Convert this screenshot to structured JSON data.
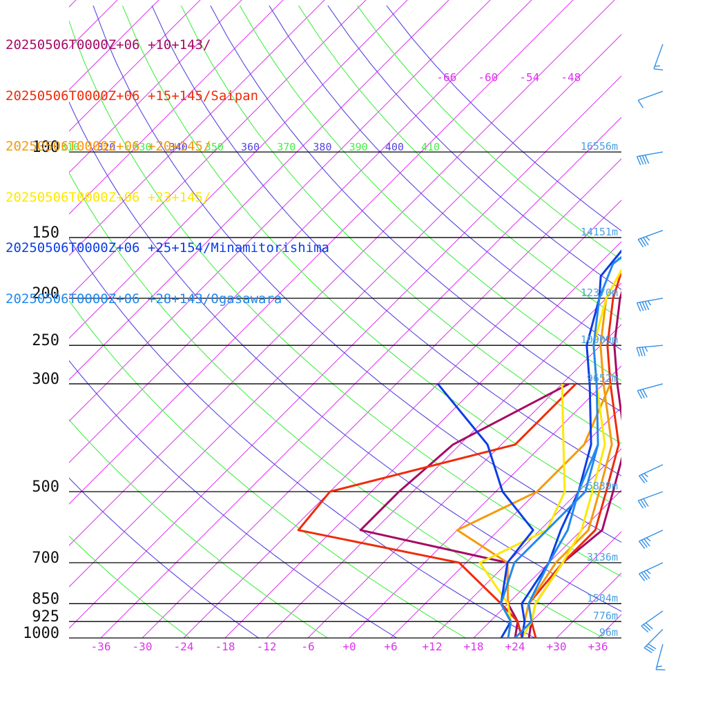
{
  "chart_data": {
    "type": "line",
    "title": "",
    "pressure_levels": [
      {
        "p": 100,
        "label": "100",
        "height": "16556m"
      },
      {
        "p": 150,
        "label": "150",
        "height": "14151m"
      },
      {
        "p": 200,
        "label": "200",
        "height": "12370m"
      },
      {
        "p": 250,
        "label": "250",
        "height": "10909m"
      },
      {
        "p": 300,
        "label": "300",
        "height": "9652m"
      },
      {
        "p": 500,
        "label": "500",
        "height": "5839m"
      },
      {
        "p": 700,
        "label": "700",
        "height": "3136m"
      },
      {
        "p": 850,
        "label": "850",
        "height": "1504m"
      },
      {
        "p": 925,
        "label": "925",
        "height": "776m"
      },
      {
        "p": 1000,
        "label": "1000",
        "height": "96m"
      }
    ],
    "x_ticks": [
      "-36",
      "-30",
      "-24",
      "-18",
      "-12",
      "-6",
      "+0",
      "+6",
      "+12",
      "+18",
      "+24",
      "+30",
      "+36"
    ],
    "upper_isotherm_labels": [
      "-66",
      "-60",
      "-54",
      "-48"
    ],
    "theta_labels": [
      {
        "text": "310",
        "color": "#44ee44"
      },
      {
        "text": "320",
        "color": "#5544dd"
      },
      {
        "text": "330",
        "color": "#44ee44"
      },
      {
        "text": "340",
        "color": "#5544dd"
      },
      {
        "text": "350",
        "color": "#44ee44"
      },
      {
        "text": "360",
        "color": "#5544dd"
      },
      {
        "text": "370",
        "color": "#44ee44"
      },
      {
        "text": "380",
        "color": "#5544dd"
      },
      {
        "text": "390",
        "color": "#44ee44"
      },
      {
        "text": "400",
        "color": "#5544dd"
      },
      {
        "text": "410",
        "color": "#44ee44"
      }
    ],
    "series": [
      {
        "name": "20250506T0000Z+06 +10+143/",
        "color": "#a50a64",
        "temperature": [
          [
            1000,
            26
          ],
          [
            925,
            24
          ],
          [
            850,
            22
          ],
          [
            700,
            20
          ],
          [
            600,
            21
          ],
          [
            500,
            17
          ],
          [
            400,
            12
          ],
          [
            300,
            2
          ],
          [
            250,
            -4
          ],
          [
            200,
            -10
          ],
          [
            150,
            -16
          ],
          [
            120,
            -20
          ],
          [
            100,
            -17
          ],
          [
            90,
            -14
          ],
          [
            80,
            -9
          ],
          [
            70,
            -2
          ],
          [
            60,
            9
          ]
        ],
        "dewpoint": [
          [
            1000,
            24
          ],
          [
            925,
            22
          ],
          [
            850,
            18
          ],
          [
            700,
            12
          ],
          [
            600,
            -14
          ],
          [
            500,
            -14
          ],
          [
            400,
            -13
          ],
          [
            300,
            -5
          ]
        ]
      },
      {
        "name": "20250506T0000Z+06 +15+145/Saipan",
        "color": "#ee2b09",
        "temperature": [
          [
            1000,
            27
          ],
          [
            925,
            24
          ],
          [
            850,
            21
          ],
          [
            700,
            20
          ],
          [
            600,
            20
          ],
          [
            500,
            16
          ],
          [
            400,
            11
          ],
          [
            300,
            1
          ],
          [
            250,
            -5
          ],
          [
            200,
            -11
          ],
          [
            150,
            -17
          ],
          [
            140,
            -18
          ],
          [
            120,
            -18
          ],
          [
            100,
            -16
          ],
          [
            90,
            -12
          ],
          [
            80,
            -7
          ],
          [
            70,
            0
          ],
          [
            60,
            10
          ]
        ],
        "dewpoint": [
          [
            1000,
            25
          ],
          [
            925,
            22
          ],
          [
            850,
            17
          ],
          [
            700,
            5
          ],
          [
            600,
            -23
          ],
          [
            500,
            -24
          ],
          [
            400,
            -4
          ],
          [
            300,
            -4
          ]
        ]
      },
      {
        "name": "20250506T0000Z+06 +20+145/",
        "color": "#f59a0a",
        "temperature": [
          [
            1000,
            25
          ],
          [
            925,
            23
          ],
          [
            850,
            21
          ],
          [
            700,
            19
          ],
          [
            600,
            19
          ],
          [
            500,
            15
          ],
          [
            400,
            10
          ],
          [
            300,
            0
          ],
          [
            250,
            -6
          ],
          [
            200,
            -12
          ],
          [
            150,
            -16
          ],
          [
            140,
            -17
          ],
          [
            120,
            -17
          ],
          [
            100,
            -14
          ],
          [
            90,
            -11
          ],
          [
            80,
            -6
          ],
          [
            70,
            1
          ],
          [
            60,
            11
          ]
        ],
        "dewpoint": [
          [
            1000,
            23
          ],
          [
            925,
            21
          ],
          [
            850,
            18
          ],
          [
            700,
            12
          ],
          [
            600,
            0
          ],
          [
            500,
            6
          ],
          [
            400,
            6
          ],
          [
            300,
            1
          ]
        ]
      },
      {
        "name": "20250506T0000Z+06 +23+145/",
        "color": "#fde800",
        "temperature": [
          [
            1000,
            25
          ],
          [
            925,
            24
          ],
          [
            850,
            22
          ],
          [
            700,
            20
          ],
          [
            600,
            18
          ],
          [
            500,
            14
          ],
          [
            400,
            9
          ],
          [
            300,
            -1
          ],
          [
            250,
            -7
          ],
          [
            200,
            -12
          ],
          [
            150,
            -16
          ],
          [
            140,
            -17
          ],
          [
            120,
            -16
          ],
          [
            100,
            -14
          ],
          [
            90,
            -10
          ],
          [
            80,
            -5
          ],
          [
            70,
            2
          ],
          [
            60,
            12
          ]
        ],
        "dewpoint": [
          [
            1000,
            22
          ],
          [
            925,
            21
          ],
          [
            850,
            18
          ],
          [
            700,
            8
          ],
          [
            600,
            13
          ],
          [
            500,
            10
          ],
          [
            400,
            3
          ],
          [
            300,
            -6
          ]
        ]
      },
      {
        "name": "20250506T0000Z+06 +25+154/Minamitorishima",
        "color": "#0b3de5",
        "temperature": [
          [
            1000,
            25
          ],
          [
            925,
            23
          ],
          [
            850,
            20
          ],
          [
            700,
            18
          ],
          [
            600,
            15
          ],
          [
            500,
            12
          ],
          [
            400,
            7
          ],
          [
            300,
            -2
          ],
          [
            250,
            -8
          ],
          [
            200,
            -13
          ],
          [
            180,
            -16
          ],
          [
            150,
            -17
          ],
          [
            120,
            -12
          ],
          [
            100,
            -10
          ],
          [
            90,
            -8
          ],
          [
            80,
            -2
          ],
          [
            70,
            5
          ],
          [
            60,
            14
          ]
        ],
        "dewpoint": [
          [
            1000,
            22
          ],
          [
            925,
            21
          ],
          [
            850,
            17
          ],
          [
            700,
            12
          ],
          [
            600,
            11
          ],
          [
            500,
            1
          ],
          [
            400,
            -8
          ],
          [
            300,
            -24
          ]
        ]
      },
      {
        "name": "20250506T0000Z+06 +28+143/Ogasawara",
        "color": "#2288ee",
        "temperature": [
          [
            1000,
            24
          ],
          [
            925,
            24
          ],
          [
            850,
            21
          ],
          [
            700,
            18
          ],
          [
            600,
            16
          ],
          [
            500,
            12
          ],
          [
            400,
            8
          ],
          [
            300,
            -1
          ],
          [
            250,
            -7
          ],
          [
            200,
            -13
          ],
          [
            170,
            -16
          ],
          [
            150,
            -15
          ],
          [
            120,
            -13
          ],
          [
            100,
            -11
          ],
          [
            90,
            -9
          ],
          [
            80,
            -4
          ],
          [
            70,
            3
          ],
          [
            60,
            13
          ]
        ],
        "dewpoint": [
          [
            1000,
            23
          ],
          [
            925,
            21
          ],
          [
            850,
            17
          ],
          [
            700,
            13
          ],
          [
            600,
            13
          ],
          [
            500,
            13
          ],
          [
            400,
            8
          ]
        ]
      }
    ],
    "wind_barbs": [
      {
        "p": 60,
        "dir": 200,
        "spd": 15
      },
      {
        "p": 75,
        "dir": 250,
        "spd": 10
      },
      {
        "p": 100,
        "dir": 260,
        "spd": 40
      },
      {
        "p": 145,
        "dir": 250,
        "spd": 35
      },
      {
        "p": 200,
        "dir": 260,
        "spd": 45
      },
      {
        "p": 250,
        "dir": 265,
        "spd": 35
      },
      {
        "p": 300,
        "dir": 255,
        "spd": 30
      },
      {
        "p": 440,
        "dir": 245,
        "spd": 25
      },
      {
        "p": 500,
        "dir": 250,
        "spd": 30
      },
      {
        "p": 600,
        "dir": 245,
        "spd": 35
      },
      {
        "p": 700,
        "dir": 245,
        "spd": 35
      },
      {
        "p": 880,
        "dir": 235,
        "spd": 30
      },
      {
        "p": 960,
        "dir": 225,
        "spd": 30
      },
      {
        "p": 1030,
        "dir": 195,
        "spd": 15
      }
    ]
  }
}
